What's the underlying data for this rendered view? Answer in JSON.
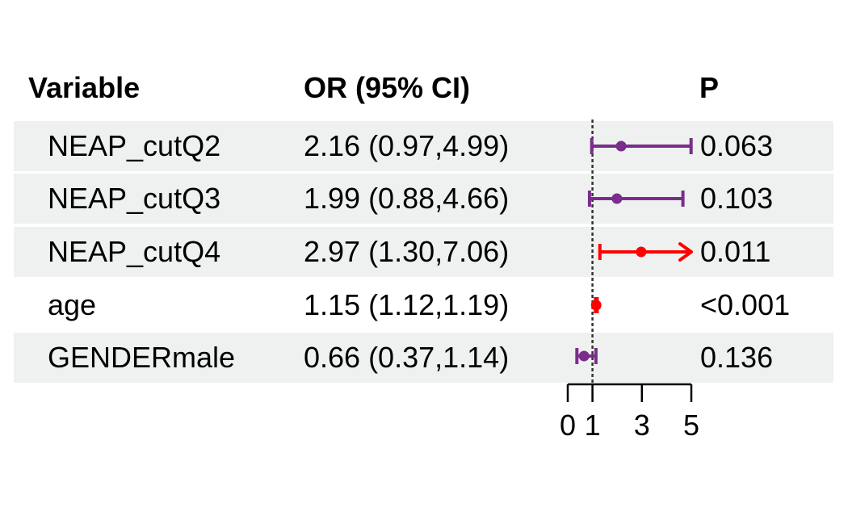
{
  "headers": {
    "variable": "Variable",
    "or": "OR (95% CI)",
    "p": "P"
  },
  "rows": [
    {
      "variable": "NEAP_cutQ2",
      "or_text": "2.16 (0.97,4.99)",
      "p": "0.063"
    },
    {
      "variable": "NEAP_cutQ3",
      "or_text": "1.99 (0.88,4.66)",
      "p": "0.103"
    },
    {
      "variable": "NEAP_cutQ4",
      "or_text": "2.97 (1.30,7.06)",
      "p": "0.011"
    },
    {
      "variable": "age",
      "or_text": "1.15 (1.12,1.19)",
      "p": "<0.001"
    },
    {
      "variable": "GENDERmale",
      "or_text": "0.66 (0.37,1.14)",
      "p": "0.136"
    }
  ],
  "chart_data": {
    "type": "forest",
    "title": "",
    "xlabel": "",
    "reference_line": 1,
    "xlim": [
      0,
      5
    ],
    "xticks": [
      0,
      1,
      3,
      5
    ],
    "xtick_labels": [
      "0",
      "1",
      "3",
      "5"
    ],
    "points": [
      {
        "label": "NEAP_cutQ2",
        "or": 2.16,
        "lower": 0.97,
        "upper": 4.99,
        "color": "#7b2d8b",
        "arrow_right": false
      },
      {
        "label": "NEAP_cutQ3",
        "or": 1.99,
        "lower": 0.88,
        "upper": 4.66,
        "color": "#7b2d8b",
        "arrow_right": false
      },
      {
        "label": "NEAP_cutQ4",
        "or": 2.97,
        "lower": 1.3,
        "upper": 7.06,
        "color": "#ff0000",
        "arrow_right": true
      },
      {
        "label": "age",
        "or": 1.15,
        "lower": 1.12,
        "upper": 1.19,
        "color": "#ff0000",
        "arrow_right": false
      },
      {
        "label": "GENDERmale",
        "or": 0.66,
        "lower": 0.37,
        "upper": 1.14,
        "color": "#7b2d8b",
        "arrow_right": false
      }
    ],
    "colors": {
      "significant": "#ff0000",
      "nonsignificant": "#7b2d8b"
    }
  }
}
